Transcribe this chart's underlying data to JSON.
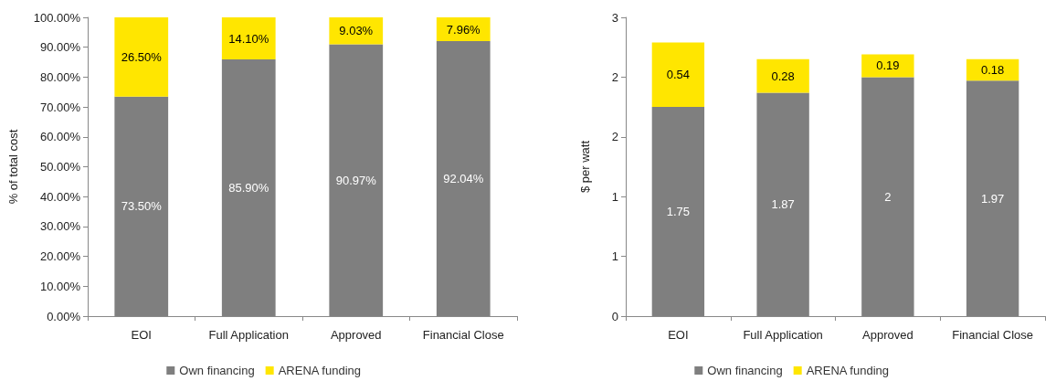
{
  "chart_data": [
    {
      "type": "bar",
      "stacked": true,
      "categories": [
        "EOI",
        "Full Application",
        "Approved",
        "Financial Close"
      ],
      "ylabel": "% of total cost",
      "ylim": [
        0,
        100
      ],
      "yticks": [
        {
          "value": 0,
          "label": "0.00%"
        },
        {
          "value": 10,
          "label": "10.00%"
        },
        {
          "value": 20,
          "label": "20.00%"
        },
        {
          "value": 30,
          "label": "30.00%"
        },
        {
          "value": 40,
          "label": "40.00%"
        },
        {
          "value": 50,
          "label": "50.00%"
        },
        {
          "value": 60,
          "label": "60.00%"
        },
        {
          "value": 70,
          "label": "70.00%"
        },
        {
          "value": 80,
          "label": "80.00%"
        },
        {
          "value": 90,
          "label": "90.00%"
        },
        {
          "value": 100,
          "label": "100.00%"
        }
      ],
      "legend": "bottom",
      "series": [
        {
          "name": "Own financing",
          "color": "#7f7f7f",
          "values": [
            73.5,
            85.9,
            90.97,
            92.04
          ],
          "value_labels": [
            "73.50%",
            "85.90%",
            "90.97%",
            "92.04%"
          ]
        },
        {
          "name": "ARENA funding",
          "color": "#ffe600",
          "values": [
            26.5,
            14.1,
            9.03,
            7.96
          ],
          "value_labels": [
            "26.50%",
            "14.10%",
            "9.03%",
            "7.96%"
          ]
        }
      ]
    },
    {
      "type": "bar",
      "stacked": true,
      "categories": [
        "EOI",
        "Full Application",
        "Approved",
        "Financial Close"
      ],
      "ylabel": "$ per watt",
      "ylim": [
        0,
        2.5
      ],
      "yticks": [
        {
          "value": 0,
          "label": "0"
        },
        {
          "value": 0.5,
          "label": "1"
        },
        {
          "value": 1,
          "label": "1"
        },
        {
          "value": 1.5,
          "label": "2"
        },
        {
          "value": 2,
          "label": "2"
        },
        {
          "value": 2.5,
          "label": "3"
        }
      ],
      "legend": "bottom",
      "data_labels": true,
      "series": [
        {
          "name": "Own financing",
          "color": "#7f7f7f",
          "values": [
            1.75,
            1.87,
            2,
            1.97
          ]
        },
        {
          "name": "ARENA funding",
          "color": "#ffe600",
          "values": [
            0.54,
            0.28,
            0.19,
            0.18
          ]
        }
      ]
    }
  ]
}
